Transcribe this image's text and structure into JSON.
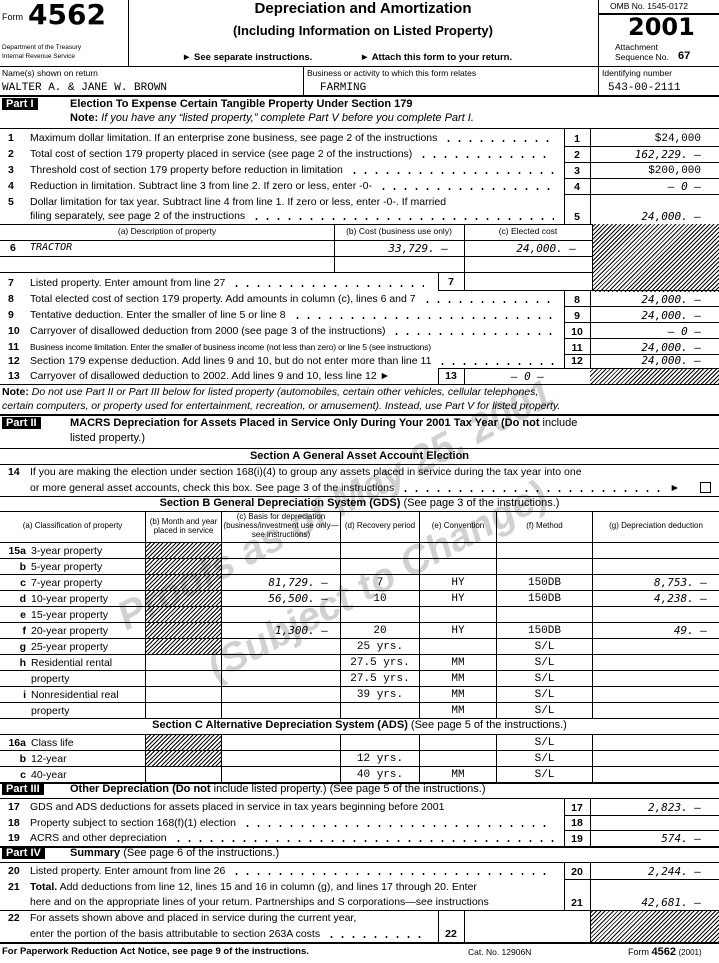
{
  "header": {
    "form_label": "Form",
    "form_number": "4562",
    "dept": "Department of the Treasury",
    "irs": "Internal Revenue Service",
    "title": "Depreciation and Amortization",
    "subtitle": "(Including Information on Listed Property)",
    "instr1": "► See separate instructions.",
    "instr2": "► Attach this form to your return.",
    "omb": "OMB No. 1545-0172",
    "year": "2001",
    "attachment": "Attachment",
    "seq_label": "Sequence No.",
    "seq": "67"
  },
  "taxpayer": {
    "name_label": "Name(s) shown on return",
    "name": "WALTER A. & JANE W. BROWN",
    "business_label": "Business or activity to which this form relates",
    "business": "FARMING",
    "id_label": "Identifying number",
    "id": "543-00-2111"
  },
  "part1": {
    "badge": "Part I",
    "title": "Election To Expense Certain Tangible Property Under Section 179",
    "note_bold": "Note:",
    "note": " If you have any “listed property,” complete Part V before you complete Part I.",
    "lines": [
      {
        "num": "1",
        "text": "Maximum dollar limitation. If an enterprise zone business, see page 2 of the instructions",
        "box": "1",
        "value": "$24,000"
      },
      {
        "num": "2",
        "text": "Total cost of section 179 property placed in service (see page 2 of the instructions)",
        "box": "2",
        "value": "162,229. –"
      },
      {
        "num": "3",
        "text": "Threshold cost of section 179 property before reduction in limitation",
        "box": "3",
        "value": "$200,000"
      },
      {
        "num": "4",
        "text": "Reduction in limitation. Subtract line 3 from line 2. If zero or less, enter -0-",
        "box": "4",
        "value": "– 0 –"
      },
      {
        "num": "5",
        "text": "Dollar limitation for tax year. Subtract line 4 from line 1. If zero or less, enter -0-. If married",
        "text2": "filing separately, see page 2 of the instructions",
        "box": "5",
        "value": "24,000. –"
      }
    ],
    "col_a": "(a) Description of property",
    "col_b": "(b) Cost (business use only)",
    "col_c": "(c) Elected cost",
    "line6": {
      "num": "6",
      "desc": "TRACTOR",
      "cost": "33,729. –",
      "elected": "24,000. –"
    },
    "line7": {
      "num": "7",
      "text": "Listed property. Enter amount from line 27",
      "box": "7",
      "value": ""
    },
    "lines2": [
      {
        "num": "8",
        "text": "Total elected cost of section 179 property. Add amounts in column (c), lines 6 and 7",
        "box": "8",
        "value": "24,000. –"
      },
      {
        "num": "9",
        "text": "Tentative deduction. Enter the smaller of line 5 or line 8",
        "box": "9",
        "value": "24,000. –"
      },
      {
        "num": "10",
        "text": "Carryover of disallowed deduction from 2000 (see page 3 of the instructions)",
        "box": "10",
        "value": "– 0 –"
      },
      {
        "num": "11",
        "text": "Business income limitation. Enter the smaller of business income (not less than zero) or line 5 (see instructions)",
        "box": "11",
        "value": "24,000. –"
      },
      {
        "num": "12",
        "text": "Section 179 expense deduction. Add lines 9 and 10, but do not enter more than line 11",
        "box": "12",
        "value": "24,000. –"
      }
    ],
    "line13": {
      "num": "13",
      "text": "Carryover of disallowed deduction to 2002. Add lines 9 and 10, less line 12 ►",
      "box": "13",
      "value": "– 0 –"
    }
  },
  "note": {
    "bold": "Note:",
    "text1": " Do not use Part II or Part III below for listed property (automobiles, certain other vehicles, cellular telephones,",
    "text2": "certain computers, or property used for entertainment, recreation, or amusement). Instead, use Part V for listed property."
  },
  "part2": {
    "badge": "Part II",
    "title_bold": "MACRS Depreciation for Assets Placed in Service Only During Your 2001 Tax Year (Do not",
    "title_rest": " include",
    "title_line2": "listed property.)",
    "section_a": "Section A   General Asset Account Election",
    "line14": {
      "num": "14",
      "text1": "If you are making the election under section 168(i)(4) to group any assets placed in service during the tax year into one",
      "text2": "or more general asset accounts, check this box. See page 3 of the instructions",
      "arrow": "►",
      "checked": false
    },
    "section_b_bold": "Section B   General Depreciation System (GDS)",
    "section_b_rest": " (See page 3 of the instructions.)",
    "columns": [
      "(a) Classification of property",
      "(b) Month and year placed in service",
      "(c) Basis for depreciation (business/investment use only—see instructions)",
      "(d) Recovery period",
      "(e) Convention",
      "(f) Method",
      "(g) Depreciation deduction"
    ],
    "rows15": [
      {
        "n": "15a",
        "label": "3-year property",
        "b": "",
        "c": "",
        "d": "",
        "e": "",
        "f": "",
        "g": ""
      },
      {
        "n": "b",
        "label": "5-year property",
        "b": "",
        "c": "",
        "d": "",
        "e": "",
        "f": "",
        "g": ""
      },
      {
        "n": "c",
        "label": "7-year property",
        "b": "",
        "c": "81,729. –",
        "d": "7",
        "e": "HY",
        "f": "150DB",
        "g": "8,753. –"
      },
      {
        "n": "d",
        "label": "10-year property",
        "b": "",
        "c": "56,500. –",
        "d": "10",
        "e": "HY",
        "f": "150DB",
        "g": "4,238. –"
      },
      {
        "n": "e",
        "label": "15-year property",
        "b": "",
        "c": "",
        "d": "",
        "e": "",
        "f": "",
        "g": ""
      },
      {
        "n": "f",
        "label": "20-year property",
        "b": "",
        "c": "1,300. –",
        "d": "20",
        "e": "HY",
        "f": "150DB",
        "g": "49. –"
      },
      {
        "n": "g",
        "label": "25-year property",
        "b": "",
        "c": "",
        "d": "25 yrs.",
        "e": "",
        "f": "S/L",
        "g": ""
      },
      {
        "n": "h",
        "label": "Residential rental",
        "b": "",
        "c": "",
        "d": "27.5 yrs.",
        "e": "MM",
        "f": "S/L",
        "g": ""
      },
      {
        "n": "",
        "label": "property",
        "b": "",
        "c": "",
        "d": "27.5 yrs.",
        "e": "MM",
        "f": "S/L",
        "g": ""
      },
      {
        "n": "i",
        "label": "Nonresidential real",
        "b": "",
        "c": "",
        "d": "39 yrs.",
        "e": "MM",
        "f": "S/L",
        "g": ""
      },
      {
        "n": "",
        "label": "property",
        "b": "",
        "c": "",
        "d": "",
        "e": "MM",
        "f": "S/L",
        "g": ""
      }
    ],
    "section_c_bold": "Section C   Alternative Depreciation System (ADS)",
    "section_c_rest": " (See page 5 of the instructions.)",
    "rows16": [
      {
        "n": "16a",
        "label": "Class life",
        "b": "",
        "c": "",
        "d": "",
        "e": "",
        "f": "S/L",
        "g": ""
      },
      {
        "n": "b",
        "label": "12-year",
        "b": "",
        "c": "",
        "d": "12 yrs.",
        "e": "",
        "f": "S/L",
        "g": ""
      },
      {
        "n": "c",
        "label": "40-year",
        "b": "",
        "c": "",
        "d": "40 yrs.",
        "e": "MM",
        "f": "S/L",
        "g": ""
      }
    ]
  },
  "part3": {
    "badge": "Part III",
    "title_bold": "Other Depreciation (Do not",
    "title_rest": " include listed property.) (See page 5 of the instructions.)",
    "lines": [
      {
        "num": "17",
        "text": "GDS and ADS deductions for assets placed in service in tax years beginning before 2001",
        "box": "17",
        "value": "2,823. –"
      },
      {
        "num": "18",
        "text": "Property subject to section 168(f)(1) election",
        "box": "18",
        "value": ""
      },
      {
        "num": "19",
        "text": "ACRS and other depreciation",
        "box": "19",
        "value": "574. –"
      }
    ]
  },
  "part4": {
    "badge": "Part IV",
    "title_bold": "Summary",
    "title_rest": " (See page 6 of the instructions.)",
    "line20": {
      "num": "20",
      "text": "Listed property. Enter amount from line 26",
      "box": "20",
      "value": "2,244. –"
    },
    "line21": {
      "num": "21",
      "text_bold": "Total.",
      "text": " Add deductions from line 12, lines 15 and 16 in column (g), and lines 17 through 20. Enter",
      "text2": "here and on the appropriate lines of your return. Partnerships and S corporations—see instructions",
      "box": "21",
      "value": "42,681. –"
    },
    "line22": {
      "num": "22",
      "text": "For assets shown above and placed in service during the current year,",
      "text2": "enter the portion of the basis attributable to section 263A costs",
      "box": "22",
      "value": ""
    }
  },
  "footer": {
    "paperwork": "For Paperwork Reduction Act Notice, see page 9 of the instructions.",
    "cat": "Cat. No. 12906N",
    "form_label": "Form",
    "form_number": "4562",
    "year": "(2001)"
  },
  "watermark": {
    "line1": "Proofs as of May 25, 2001",
    "line2": "(Subject to Change)"
  }
}
